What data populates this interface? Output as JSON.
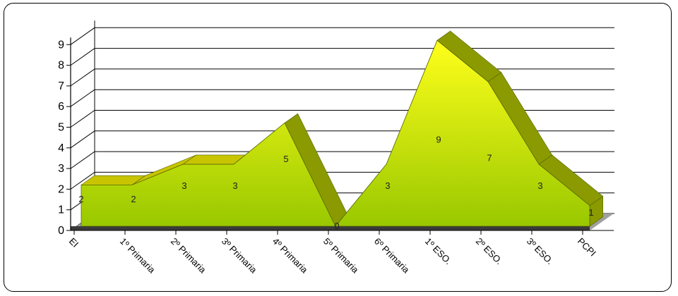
{
  "chart_data": {
    "type": "area",
    "title": "",
    "xlabel": "",
    "ylabel": "",
    "categories": [
      "EI",
      "1º Primaria",
      "2º Primaria",
      "3º Primaria",
      "4º Primaria",
      "5º Primaria",
      "6º Primaria",
      "1º ESO.",
      "2º ESO.",
      "3º ESO.",
      "PCPI"
    ],
    "values": [
      2,
      2,
      3,
      3,
      5,
      0,
      3,
      9,
      7,
      3,
      1
    ],
    "yticks": [
      "0",
      "1",
      "2",
      "3",
      "4",
      "5",
      "6",
      "7",
      "8",
      "9"
    ],
    "ylim": [
      0,
      9
    ],
    "grid": true,
    "legend": "none",
    "three_d": true,
    "colors": {
      "fill_top": "#ffff1a",
      "fill_bottom": "#99c800",
      "side_light": "#c8c400",
      "side_dark": "#8a9a00",
      "floor": "#3a3a3a"
    }
  }
}
